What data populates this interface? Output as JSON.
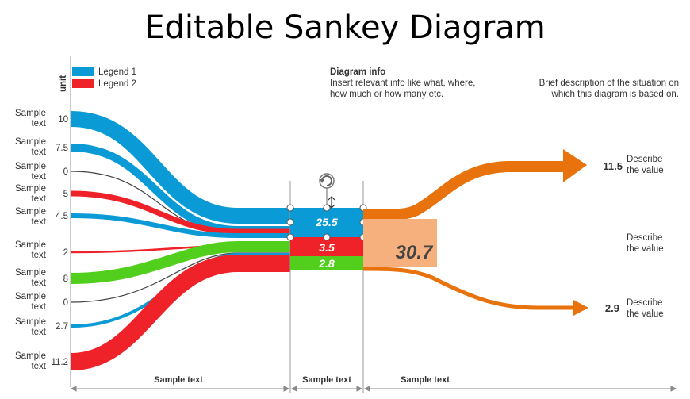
{
  "title": "Editable Sankey Diagram",
  "unit_label": "unit",
  "legend": [
    {
      "label": "Legend 1",
      "color": "#0a9bd6"
    },
    {
      "label": "Legend 2",
      "color": "#ef2229"
    }
  ],
  "diagram_info": {
    "heading": "Diagram info",
    "line1": "Insert relevant info like what, where,",
    "line2": "how much or how many etc."
  },
  "description": {
    "line1": "Brief description of the situation on",
    "line2": "which this diagram is based on."
  },
  "inputs": [
    {
      "label_top": "Sample",
      "label_bottom": "text",
      "value": "10"
    },
    {
      "label_top": "Sample",
      "label_bottom": "text",
      "value": "7.5"
    },
    {
      "label_top": "Sample",
      "label_bottom": "text",
      "value": "0"
    },
    {
      "label_top": "Sample",
      "label_bottom": "text",
      "value": "5"
    },
    {
      "label_top": "Sample",
      "label_bottom": "text",
      "value": "4.5"
    },
    {
      "label_top": "Sample",
      "label_bottom": "text",
      "value": "2"
    },
    {
      "label_top": "Sample",
      "label_bottom": "text",
      "value": "8"
    },
    {
      "label_top": "Sample",
      "label_bottom": "text",
      "value": "0"
    },
    {
      "label_top": "Sample",
      "label_bottom": "text",
      "value": "2.7"
    },
    {
      "label_top": "Sample",
      "label_bottom": "text",
      "value": "11.2"
    }
  ],
  "middle": {
    "blue_value": "25.5",
    "red_value": "3.5",
    "green_value": "2.8"
  },
  "total_value": "30.7",
  "outputs": [
    {
      "value": "11.5",
      "line1": "Describe",
      "line2": "the value"
    },
    {
      "value": "",
      "line1": "Describe",
      "line2": "the value"
    },
    {
      "value": "2.9",
      "line1": "Describe",
      "line2": "the value"
    }
  ],
  "axis_labels": [
    "Sample text",
    "Sample text",
    "Sample text"
  ],
  "colors": {
    "blue": "#0a9bd6",
    "red": "#ef2229",
    "green": "#51cf1c",
    "orange": "#e8720c",
    "orange_light": "#f5b07e",
    "gray_line": "#444444"
  }
}
